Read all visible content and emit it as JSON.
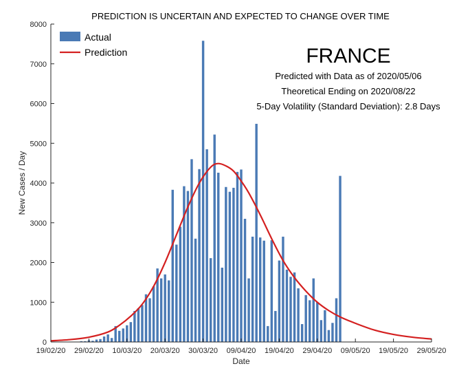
{
  "chart_data": {
    "type": "bar",
    "title": "PREDICTION IS UNCERTAIN AND EXPECTED TO CHANGE OVER TIME",
    "xlabel": "Date",
    "ylabel": "New Cases / Day",
    "ylim": [
      0,
      8000
    ],
    "yticks": [
      0,
      1000,
      2000,
      3000,
      4000,
      5000,
      6000,
      7000,
      8000
    ],
    "xlim": [
      "2020-02-19",
      "2020-05-29"
    ],
    "xtick_dates": [
      "2020-02-19",
      "2020-02-29",
      "2020-03-10",
      "2020-03-20",
      "2020-03-30",
      "2020-04-09",
      "2020-04-19",
      "2020-04-29",
      "2020-05-09",
      "2020-05-19",
      "2020-05-29"
    ],
    "xtick_labels": [
      "19/02/20",
      "29/02/20",
      "10/03/20",
      "20/03/20",
      "30/03/20",
      "09/04/20",
      "19/04/20",
      "29/04/20",
      "09/05/20",
      "19/05/20",
      "29/05/20"
    ],
    "grid": false,
    "legend_position": "top-left",
    "annotations": {
      "country": "FRANCE",
      "lines": [
        "Predicted with Data as of 2020/05/06",
        "Theoretical Ending on 2020/08/22",
        "5-Day Volatility (Standard Deviation): 2.8 Days"
      ]
    },
    "series": [
      {
        "name": "Actual",
        "kind": "bar",
        "color": "#4a7ab5",
        "x": [
          "2020-02-25",
          "2020-02-26",
          "2020-02-27",
          "2020-02-28",
          "2020-02-29",
          "2020-03-01",
          "2020-03-02",
          "2020-03-03",
          "2020-03-04",
          "2020-03-05",
          "2020-03-06",
          "2020-03-07",
          "2020-03-08",
          "2020-03-09",
          "2020-03-10",
          "2020-03-11",
          "2020-03-12",
          "2020-03-13",
          "2020-03-14",
          "2020-03-15",
          "2020-03-16",
          "2020-03-17",
          "2020-03-18",
          "2020-03-19",
          "2020-03-20",
          "2020-03-21",
          "2020-03-22",
          "2020-03-23",
          "2020-03-24",
          "2020-03-25",
          "2020-03-26",
          "2020-03-27",
          "2020-03-28",
          "2020-03-29",
          "2020-03-30",
          "2020-03-31",
          "2020-04-01",
          "2020-04-02",
          "2020-04-03",
          "2020-04-04",
          "2020-04-05",
          "2020-04-06",
          "2020-04-07",
          "2020-04-08",
          "2020-04-09",
          "2020-04-10",
          "2020-04-11",
          "2020-04-12",
          "2020-04-13",
          "2020-04-14",
          "2020-04-15",
          "2020-04-16",
          "2020-04-17",
          "2020-04-18",
          "2020-04-19",
          "2020-04-20",
          "2020-04-21",
          "2020-04-22",
          "2020-04-23",
          "2020-04-24",
          "2020-04-25",
          "2020-04-26",
          "2020-04-27",
          "2020-04-28",
          "2020-04-29",
          "2020-04-30",
          "2020-05-01",
          "2020-05-02",
          "2020-05-03",
          "2020-05-04",
          "2020-05-05",
          "2020-05-06"
        ],
        "values": [
          2,
          4,
          20,
          20,
          43,
          30,
          61,
          73,
          138,
          190,
          100,
          400,
          280,
          340,
          420,
          500,
          780,
          850,
          930,
          1200,
          1100,
          1400,
          1850,
          1600,
          1700,
          1550,
          3830,
          2450,
          2900,
          3920,
          3800,
          4600,
          2600,
          4350,
          7580,
          4850,
          2110,
          5220,
          4260,
          1870,
          3900,
          3780,
          3880,
          4280,
          4340,
          3100,
          1600,
          2650,
          5490,
          2630,
          2550,
          400,
          2560,
          780,
          2050,
          2650,
          1820,
          1640,
          1750,
          1350,
          450,
          1180,
          1050,
          1600,
          1000,
          550,
          800,
          300,
          480,
          1100,
          4180,
          0
        ]
      },
      {
        "name": "Prediction",
        "kind": "line",
        "color": "#d42020",
        "x": [
          "2020-02-19",
          "2020-02-24",
          "2020-02-29",
          "2020-03-05",
          "2020-03-08",
          "2020-03-11",
          "2020-03-14",
          "2020-03-17",
          "2020-03-20",
          "2020-03-23",
          "2020-03-26",
          "2020-03-29",
          "2020-04-01",
          "2020-04-03",
          "2020-04-05",
          "2020-04-07",
          "2020-04-09",
          "2020-04-11",
          "2020-04-14",
          "2020-04-17",
          "2020-04-20",
          "2020-04-23",
          "2020-04-26",
          "2020-04-29",
          "2020-05-02",
          "2020-05-05",
          "2020-05-09",
          "2020-05-14",
          "2020-05-19",
          "2020-05-24",
          "2020-05-29"
        ],
        "values": [
          30,
          60,
          120,
          250,
          420,
          650,
          950,
          1400,
          2000,
          2700,
          3400,
          4000,
          4400,
          4490,
          4430,
          4300,
          4050,
          3750,
          3200,
          2600,
          2050,
          1620,
          1280,
          1000,
          790,
          630,
          470,
          300,
          190,
          120,
          75
        ]
      }
    ]
  }
}
